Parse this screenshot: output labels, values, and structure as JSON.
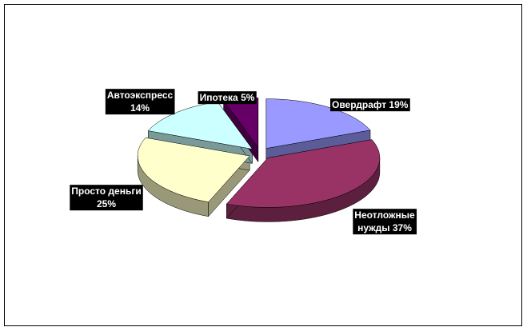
{
  "chart_data": {
    "type": "pie",
    "values": [
      19,
      37,
      25,
      14,
      5
    ],
    "value_labels": [
      [
        "Овердрафт 19%"
      ],
      [
        "Неотложные",
        "нужды 37%"
      ],
      [
        "Просто деньги",
        "25%"
      ],
      [
        "Автоэкспресс",
        "14%"
      ],
      [
        "Ипотека 5%"
      ]
    ],
    "colors": [
      "#9999ff",
      "#993366",
      "#ffffcc",
      "#ccffff",
      "#660066"
    ]
  }
}
